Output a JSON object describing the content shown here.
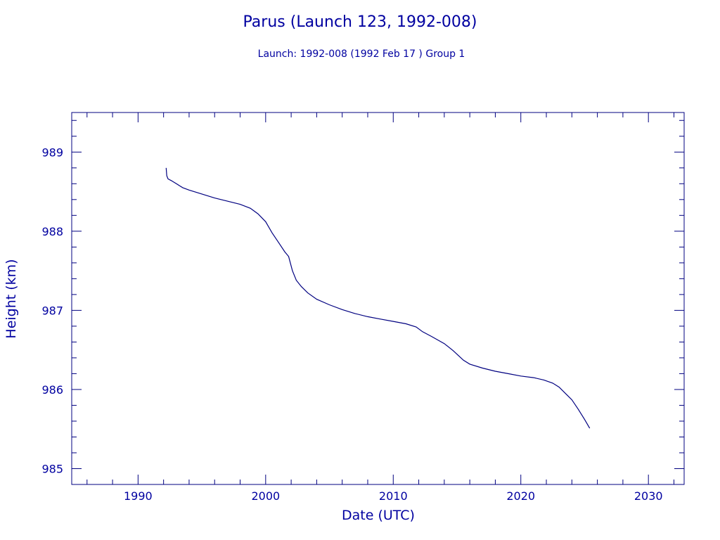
{
  "chart_data": {
    "type": "line",
    "title": "Parus (Launch 123, 1992-008)",
    "subtitle": "Launch: 1992-008  (1992 Feb 17 )  Group 1",
    "xlabel": "Date (UTC)",
    "ylabel": "Height (km)",
    "xlim": [
      1984.8,
      2032.8
    ],
    "ylim": [
      984.8,
      989.5
    ],
    "x_ticks": [
      1990,
      2000,
      2010,
      2020,
      2030
    ],
    "y_ticks": [
      985,
      986,
      987,
      988,
      989
    ],
    "grid": false,
    "legend": "none",
    "line_color": "#000080",
    "series": [
      {
        "x": [
          1992.2,
          1992.25,
          1992.35,
          1992.6,
          1993.0,
          1993.5,
          1994.0,
          1995.0,
          1996.0,
          1997.0,
          1998.0,
          1998.8,
          1999.4,
          2000.0,
          2000.5,
          2001.0,
          2001.5,
          2001.8,
          2002.1,
          2002.4,
          2002.8,
          2003.3,
          2004.0,
          2005.0,
          2006.0,
          2007.0,
          2008.0,
          2009.0,
          2010.0,
          2011.0,
          2011.8,
          2012.3,
          2013.0,
          2014.0,
          2014.7,
          2015.5,
          2016.0,
          2017.0,
          2018.0,
          2019.0,
          2020.0,
          2021.0,
          2021.8,
          2022.5,
          2023.0,
          2023.5,
          2024.0,
          2024.5,
          2025.0,
          2025.4
        ],
        "y": [
          988.8,
          988.7,
          988.66,
          988.64,
          988.6,
          988.55,
          988.52,
          988.47,
          988.42,
          988.38,
          988.34,
          988.29,
          988.22,
          988.12,
          987.98,
          987.86,
          987.74,
          987.68,
          987.5,
          987.38,
          987.3,
          987.22,
          987.14,
          987.07,
          987.01,
          986.96,
          986.92,
          986.89,
          986.86,
          986.83,
          986.79,
          986.73,
          986.67,
          986.58,
          986.49,
          986.37,
          986.32,
          986.27,
          986.23,
          986.2,
          986.17,
          986.15,
          986.12,
          986.08,
          986.03,
          985.95,
          985.87,
          985.75,
          985.62,
          985.51
        ]
      }
    ]
  }
}
